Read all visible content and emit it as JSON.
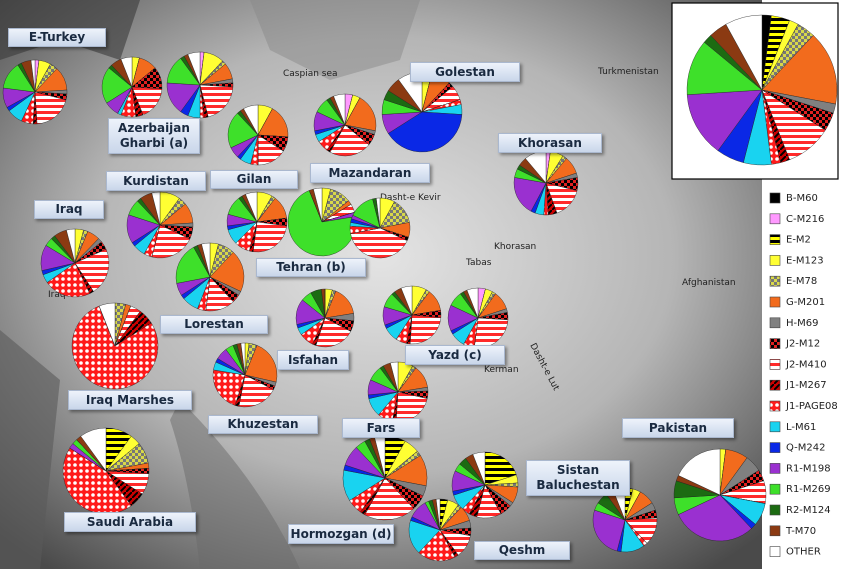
{
  "legend": {
    "items": [
      {
        "name": "B-M60",
        "color": "#000000"
      },
      {
        "name": "C-M216",
        "color": "#ff99ff"
      },
      {
        "name": "E-M2",
        "color": "#ffff00"
      },
      {
        "name": "E-M123",
        "color": "#ffff33"
      },
      {
        "name": "E-M78",
        "color": "#d8d84a"
      },
      {
        "name": "G-M201",
        "color": "#f26b1d"
      },
      {
        "name": "H-M69",
        "color": "#808080"
      },
      {
        "name": "J2-M12",
        "color": "#e02020"
      },
      {
        "name": "J2-M410",
        "color": "#ff2a2a"
      },
      {
        "name": "J1-M267",
        "color": "#cc0000"
      },
      {
        "name": "J1-PAGE08",
        "color": "#ff1a1a"
      },
      {
        "name": "L-M61",
        "color": "#19d3f0"
      },
      {
        "name": "Q-M242",
        "color": "#0a28e6"
      },
      {
        "name": "R1-M198",
        "color": "#9a30d0"
      },
      {
        "name": "R1-M269",
        "color": "#3ee02a"
      },
      {
        "name": "R2-M124",
        "color": "#1c6b12"
      },
      {
        "name": "T-M70",
        "color": "#8b3a12"
      },
      {
        "name": "OTHER",
        "color": "#ffffff"
      }
    ]
  },
  "pies": [
    {
      "values": [
        0,
        2,
        0,
        6,
        4,
        12,
        2,
        3,
        20,
        2,
        6,
        8,
        2,
        10,
        14,
        2,
        5,
        2
      ]
    },
    {
      "values": [
        0,
        0,
        0,
        4,
        0,
        10,
        0,
        12,
        18,
        4,
        8,
        2,
        0,
        8,
        20,
        2,
        6,
        6
      ]
    },
    {
      "values": [
        0,
        2,
        0,
        10,
        2,
        8,
        2,
        2,
        20,
        2,
        2,
        6,
        4,
        16,
        14,
        2,
        2,
        6
      ]
    },
    {
      "values": [
        0,
        0,
        0,
        8,
        0,
        18,
        0,
        8,
        16,
        0,
        4,
        6,
        2,
        6,
        20,
        2,
        2,
        8
      ]
    },
    {
      "values": [
        0,
        4,
        0,
        4,
        0,
        20,
        2,
        6,
        22,
        2,
        6,
        4,
        2,
        10,
        8,
        2,
        2,
        6
      ]
    },
    {
      "values": [
        0,
        0,
        0,
        4,
        0,
        8,
        0,
        2,
        6,
        0,
        2,
        4,
        40,
        8,
        6,
        4,
        6,
        10
      ]
    },
    {
      "values": [
        0,
        2,
        0,
        6,
        2,
        8,
        2,
        6,
        14,
        4,
        2,
        4,
        2,
        18,
        4,
        2,
        4,
        10
      ]
    },
    {
      "values": [
        0,
        0,
        0,
        10,
        4,
        10,
        2,
        6,
        22,
        0,
        4,
        6,
        2,
        14,
        8,
        2,
        6,
        4
      ]
    },
    {
      "values": [
        0,
        0,
        0,
        4,
        2,
        6,
        2,
        4,
        22,
        2,
        22,
        4,
        2,
        12,
        4,
        2,
        6,
        4
      ]
    },
    {
      "values": [
        0,
        0,
        0,
        4,
        8,
        20,
        2,
        4,
        14,
        0,
        4,
        8,
        2,
        6,
        20,
        2,
        2,
        4
      ]
    },
    {
      "values": [
        0,
        0,
        0,
        8,
        2,
        12,
        0,
        4,
        24,
        2,
        8,
        8,
        2,
        6,
        10,
        2,
        2,
        6
      ]
    },
    {
      "values": [
        0,
        0,
        0,
        4,
        10,
        2,
        0,
        0,
        4,
        0,
        0,
        0,
        0,
        2,
        70,
        0,
        2,
        4
      ]
    },
    {
      "values": [
        0,
        0,
        0,
        8,
        14,
        8,
        0,
        2,
        40,
        0,
        4,
        2,
        2,
        2,
        14,
        2,
        0,
        2
      ]
    },
    {
      "values": [
        0,
        0,
        0,
        4,
        2,
        16,
        4,
        6,
        22,
        2,
        8,
        4,
        2,
        14,
        6,
        6,
        2,
        0
      ]
    },
    {
      "values": [
        0,
        0,
        0,
        8,
        2,
        12,
        0,
        4,
        24,
        2,
        6,
        8,
        2,
        10,
        8,
        2,
        4,
        6
      ]
    },
    {
      "values": [
        0,
        4,
        0,
        4,
        2,
        10,
        2,
        4,
        26,
        0,
        6,
        8,
        2,
        14,
        8,
        2,
        2,
        6
      ]
    },
    {
      "values": [
        0,
        0,
        0,
        0,
        4,
        2,
        0,
        0,
        4,
        6,
        78,
        0,
        0,
        0,
        0,
        0,
        0,
        6
      ]
    },
    {
      "values": [
        0,
        0,
        0,
        2,
        4,
        22,
        2,
        2,
        20,
        2,
        22,
        4,
        2,
        6,
        4,
        2,
        2,
        2
      ]
    },
    {
      "values": [
        0,
        0,
        0,
        8,
        2,
        12,
        2,
        4,
        22,
        2,
        8,
        10,
        2,
        8,
        8,
        2,
        4,
        4
      ]
    },
    {
      "values": [
        0,
        0,
        10,
        4,
        8,
        2,
        0,
        2,
        8,
        6,
        44,
        0,
        0,
        2,
        2,
        0,
        2,
        10
      ]
    },
    {
      "values": [
        0,
        0,
        8,
        6,
        2,
        12,
        4,
        6,
        20,
        2,
        6,
        12,
        2,
        8,
        4,
        2,
        2,
        4
      ]
    },
    {
      "values": [
        0,
        0,
        20,
        4,
        2,
        8,
        2,
        6,
        12,
        4,
        4,
        8,
        2,
        10,
        4,
        4,
        4,
        6
      ]
    },
    {
      "values": [
        0,
        0,
        4,
        6,
        2,
        8,
        4,
        4,
        12,
        2,
        20,
        18,
        2,
        10,
        2,
        2,
        2,
        2
      ]
    },
    {
      "values": [
        0,
        0,
        4,
        4,
        0,
        8,
        4,
        4,
        14,
        0,
        2,
        12,
        2,
        26,
        4,
        6,
        4,
        6
      ]
    },
    {
      "values": [
        0,
        0,
        0,
        2,
        0,
        8,
        6,
        4,
        8,
        0,
        0,
        8,
        2,
        30,
        6,
        6,
        2,
        18
      ]
    },
    {
      "values": [
        2,
        0,
        4,
        2,
        4,
        16,
        2,
        4,
        10,
        2,
        2,
        6,
        6,
        14,
        12,
        2,
        4,
        8
      ]
    }
  ],
  "labels": [
    "E-Turkey",
    "Azerbaijan Gharbi  (a)",
    "Golestan",
    "Khorasan",
    "Gilan",
    "Mazandaran",
    "Kurdistan",
    "Iraq",
    "Tehran (b)",
    "Lorestan",
    "Isfahan",
    "Yazd (c)",
    "Iraq Marshes",
    "Khuzestan",
    "Fars",
    "Saudi Arabia",
    "Pakistan",
    "Sistan Baluchestan",
    "Hormozgan  (d)",
    "Qeshm"
  ],
  "map_labels": [
    "Caspian sea",
    "Turkmenistan",
    "Afghanistan",
    "Dasht-e Kevir",
    "Dasht-e Lut",
    "Iraq",
    "Khorasan",
    "Kerman",
    "Tabas"
  ]
}
